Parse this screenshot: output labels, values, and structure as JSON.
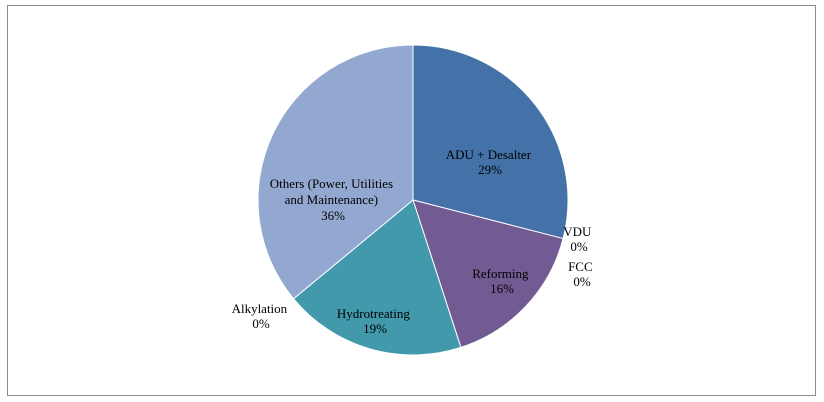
{
  "chart_data": {
    "type": "pie",
    "title": "",
    "legend": "none",
    "slices": [
      {
        "label": "ADU + Desalter",
        "value": 29,
        "value_label": "29%",
        "color": "#4472a8"
      },
      {
        "label": "VDU",
        "value": 0,
        "value_label": "0%",
        "color": "#a9473f"
      },
      {
        "label": "Reforming",
        "value": 16,
        "value_label": "16%",
        "color": "#725b92"
      },
      {
        "label": "FCC",
        "value": 0,
        "value_label": "0%",
        "color": "#87a245"
      },
      {
        "label": "Hydrotreating",
        "value": 19,
        "value_label": "19%",
        "color": "#4299ab"
      },
      {
        "label": "Alkylation",
        "value": 0,
        "value_label": "0%",
        "color": "#d98a3a"
      },
      {
        "label": "Others (Power, Utilities and Maintenance)",
        "value": 36,
        "value_label": "36%",
        "color": "#93a8d1"
      }
    ]
  }
}
